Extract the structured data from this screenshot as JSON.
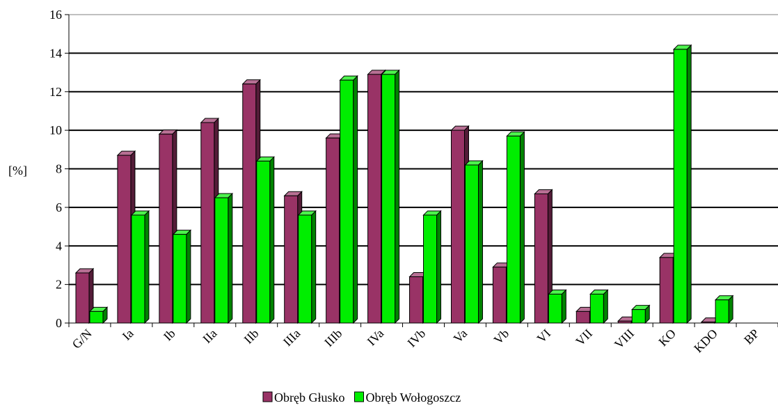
{
  "chart_data": {
    "type": "bar",
    "title": "",
    "xlabel": "",
    "ylabel": "[%]",
    "ylim": [
      0,
      16
    ],
    "yticks": [
      0,
      2,
      4,
      6,
      8,
      10,
      12,
      14,
      16
    ],
    "grid": true,
    "legend_position": "bottom",
    "categories": [
      "G/N",
      "Ia",
      "Ib",
      "IIa",
      "IIb",
      "IIIa",
      "IIIb",
      "IVa",
      "IVb",
      "Va",
      "Vb",
      "VI",
      "VII",
      "VIII",
      "KO",
      "KDO",
      "BP"
    ],
    "series": [
      {
        "name": "Obręb Głusko",
        "color": "#993366",
        "values": [
          2.6,
          8.7,
          9.8,
          10.4,
          12.4,
          6.6,
          9.6,
          12.9,
          2.4,
          10.0,
          2.9,
          6.7,
          0.6,
          0.1,
          3.4,
          0.05,
          0
        ]
      },
      {
        "name": "Obręb Wołogoszcz",
        "color": "#00ee00",
        "values": [
          0.6,
          5.6,
          4.6,
          6.5,
          8.4,
          5.6,
          12.6,
          12.9,
          5.6,
          8.2,
          9.7,
          1.5,
          1.5,
          0.7,
          14.2,
          1.2,
          0
        ]
      }
    ]
  }
}
